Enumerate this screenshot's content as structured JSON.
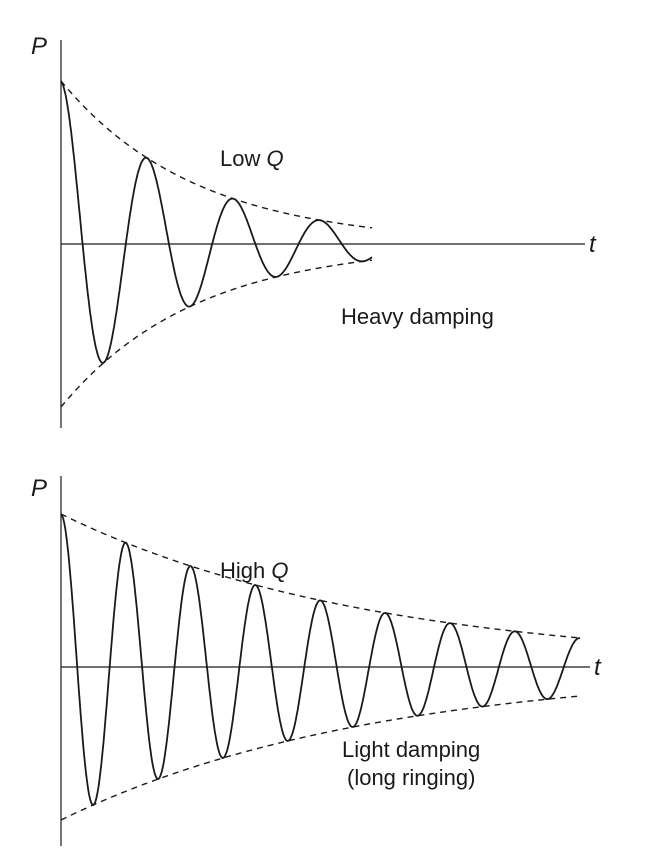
{
  "panels": [
    {
      "y_axis_label": "P",
      "x_axis_label": "t",
      "q_label_prefix": "Low ",
      "q_label_symbol": "Q",
      "damping_label_line1": "Heavy damping",
      "damping_label_line2": "",
      "model": {
        "cycles": 3.6,
        "decay_rate": 1.05,
        "t_end": 1.0
      }
    },
    {
      "y_axis_label": "P",
      "x_axis_label": "t",
      "q_label_prefix": "High ",
      "q_label_symbol": "Q",
      "damping_label_line1": "Light damping",
      "damping_label_line2": "(long ringing)",
      "model": {
        "cycles": 8.0,
        "decay_rate": 0.52,
        "t_end": 1.0
      }
    }
  ]
}
